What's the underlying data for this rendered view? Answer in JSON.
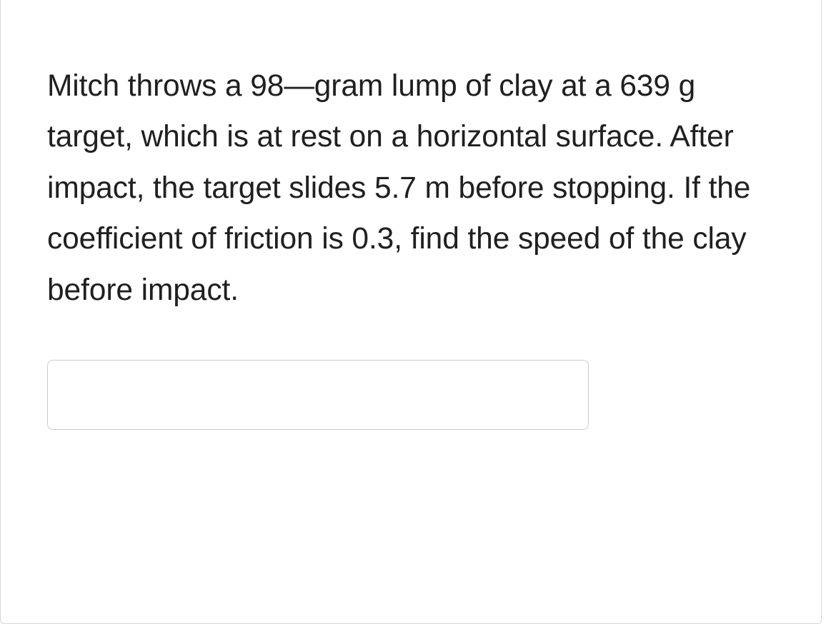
{
  "question": {
    "text": "Mitch throws a 98—gram lump of clay at a 639 g target, which is at rest on a horizontal surface. After impact, the target slides 5.7 m before stopping. If the coefficient of friction is 0.3, find the speed of the clay before impact.",
    "clay_mass_g": 98,
    "target_mass_g": 639,
    "slide_distance_m": 5.7,
    "friction_coefficient": 0.3
  },
  "answer": {
    "value": "",
    "placeholder": ""
  },
  "styles": {
    "card_border_color": "#d8d8d8",
    "text_color": "#202020",
    "input_border_color": "#cccccc",
    "background_color": "#ffffff",
    "font_size_pt": 32,
    "line_height": 1.68
  }
}
